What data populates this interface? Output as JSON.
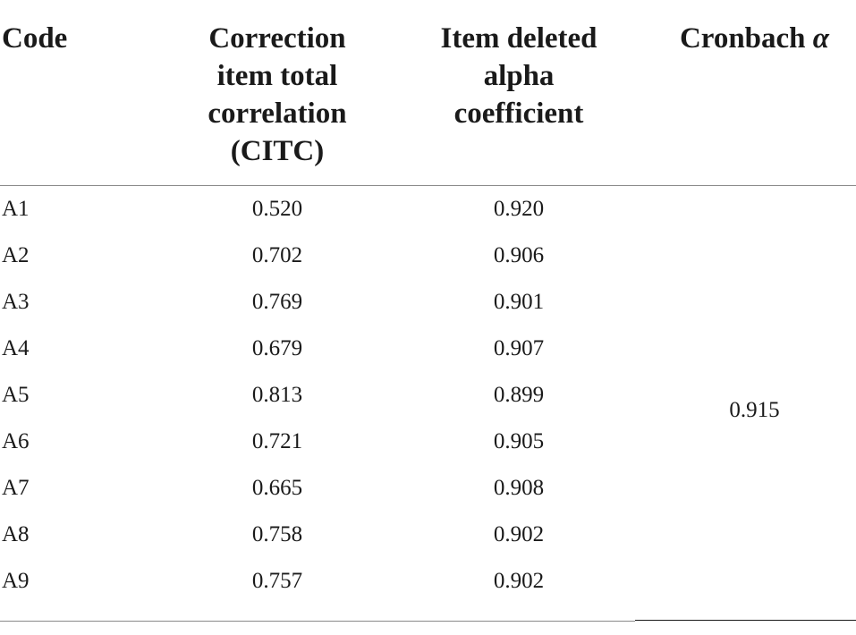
{
  "headers": {
    "code": "Code",
    "citc_line1": "Correction",
    "citc_line2": "item total",
    "citc_line3": "correlation",
    "citc_line4": "(CITC)",
    "deleted_line1": "Item deleted",
    "deleted_line2": "alpha",
    "deleted_line3": "coefficient",
    "alpha_text": "Cronbach ",
    "alpha_symbol": "α"
  },
  "rows": [
    {
      "code": "A1",
      "citc": "0.520",
      "deleted": "0.920"
    },
    {
      "code": "A2",
      "citc": "0.702",
      "deleted": "0.906"
    },
    {
      "code": "A3",
      "citc": "0.769",
      "deleted": "0.901"
    },
    {
      "code": "A4",
      "citc": "0.679",
      "deleted": "0.907"
    },
    {
      "code": "A5",
      "citc": "0.813",
      "deleted": "0.899"
    },
    {
      "code": "A6",
      "citc": "0.721",
      "deleted": "0.905"
    },
    {
      "code": "A7",
      "citc": "0.665",
      "deleted": "0.908"
    },
    {
      "code": "A8",
      "citc": "0.758",
      "deleted": "0.902"
    },
    {
      "code": "A9",
      "citc": "0.757",
      "deleted": "0.902"
    }
  ],
  "cronbach_alpha": "0.915"
}
